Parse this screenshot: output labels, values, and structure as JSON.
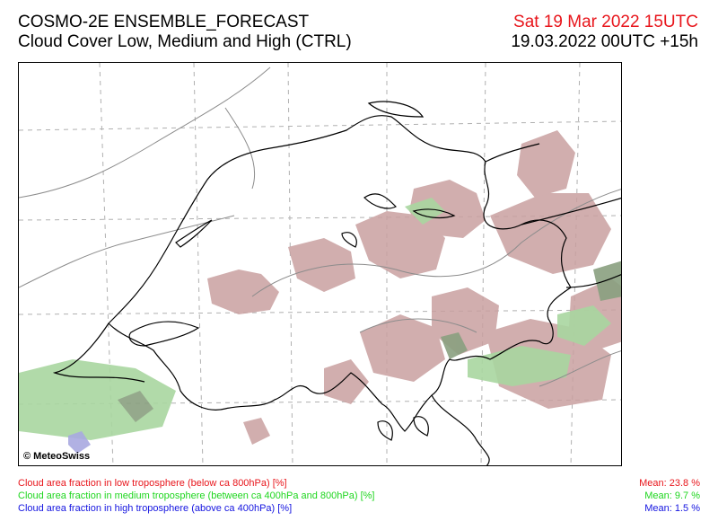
{
  "header": {
    "model": "COSMO-2E ENSEMBLE_FORECAST",
    "product": "Cloud Cover Low, Medium and High (CTRL)",
    "valid_time": "Sat 19 Mar 2022 15UTC",
    "run_time": "19.03.2022 00UTC +15h"
  },
  "map": {
    "copyright": "© MeteoSwiss"
  },
  "legend": {
    "items": [
      {
        "label": "Cloud area fraction in low troposphere (below ca 800hPa) [%]",
        "mean": "Mean:  23.8 %",
        "color": "#e8161c"
      },
      {
        "label": "Cloud area fraction in medium troposphere (between ca 400hPa and 800hPa) [%]",
        "mean": "Mean:   9.7 %",
        "color": "#1ed61e"
      },
      {
        "label": "Cloud area fraction in high troposphere (above ca 400hPa) [%]",
        "mean": "Mean:   1.5 %",
        "color": "#1515e0"
      }
    ]
  },
  "colors": {
    "low_cloud_fill": "#c9a0a0",
    "medium_cloud_fill": "#a9d6a0",
    "high_cloud_fill": "#a8a8e0",
    "border": "#000000",
    "relief": "#888888"
  }
}
